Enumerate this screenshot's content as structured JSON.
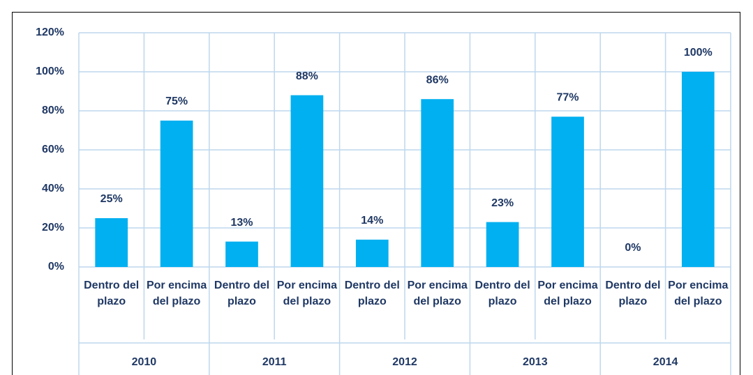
{
  "chart_data": {
    "type": "bar",
    "categories": [
      "Dentro del plazo",
      "Por encima del plazo",
      "Dentro del plazo",
      "Por encima del plazo",
      "Dentro del plazo",
      "Por encima del plazo",
      "Dentro del plazo",
      "Por encima del plazo",
      "Dentro del plazo",
      "Por encima del plazo"
    ],
    "groups": [
      "2010",
      "2011",
      "2012",
      "2013",
      "2014"
    ],
    "values": [
      25,
      75,
      13,
      88,
      14,
      86,
      23,
      77,
      0,
      100
    ],
    "value_labels": [
      "25%",
      "75%",
      "13%",
      "88%",
      "14%",
      "86%",
      "23%",
      "77%",
      "0%",
      "100%"
    ],
    "color": "#00b0f0",
    "ylim": [
      0,
      120
    ],
    "yticks": [
      {
        "value": 0,
        "label": "0%"
      },
      {
        "value": 20,
        "label": "20%"
      },
      {
        "value": 40,
        "label": "40%"
      },
      {
        "value": 60,
        "label": "60%"
      },
      {
        "value": 80,
        "label": "80%"
      },
      {
        "value": 100,
        "label": "100%"
      },
      {
        "value": 120,
        "label": "120%"
      }
    ],
    "grid": true
  }
}
